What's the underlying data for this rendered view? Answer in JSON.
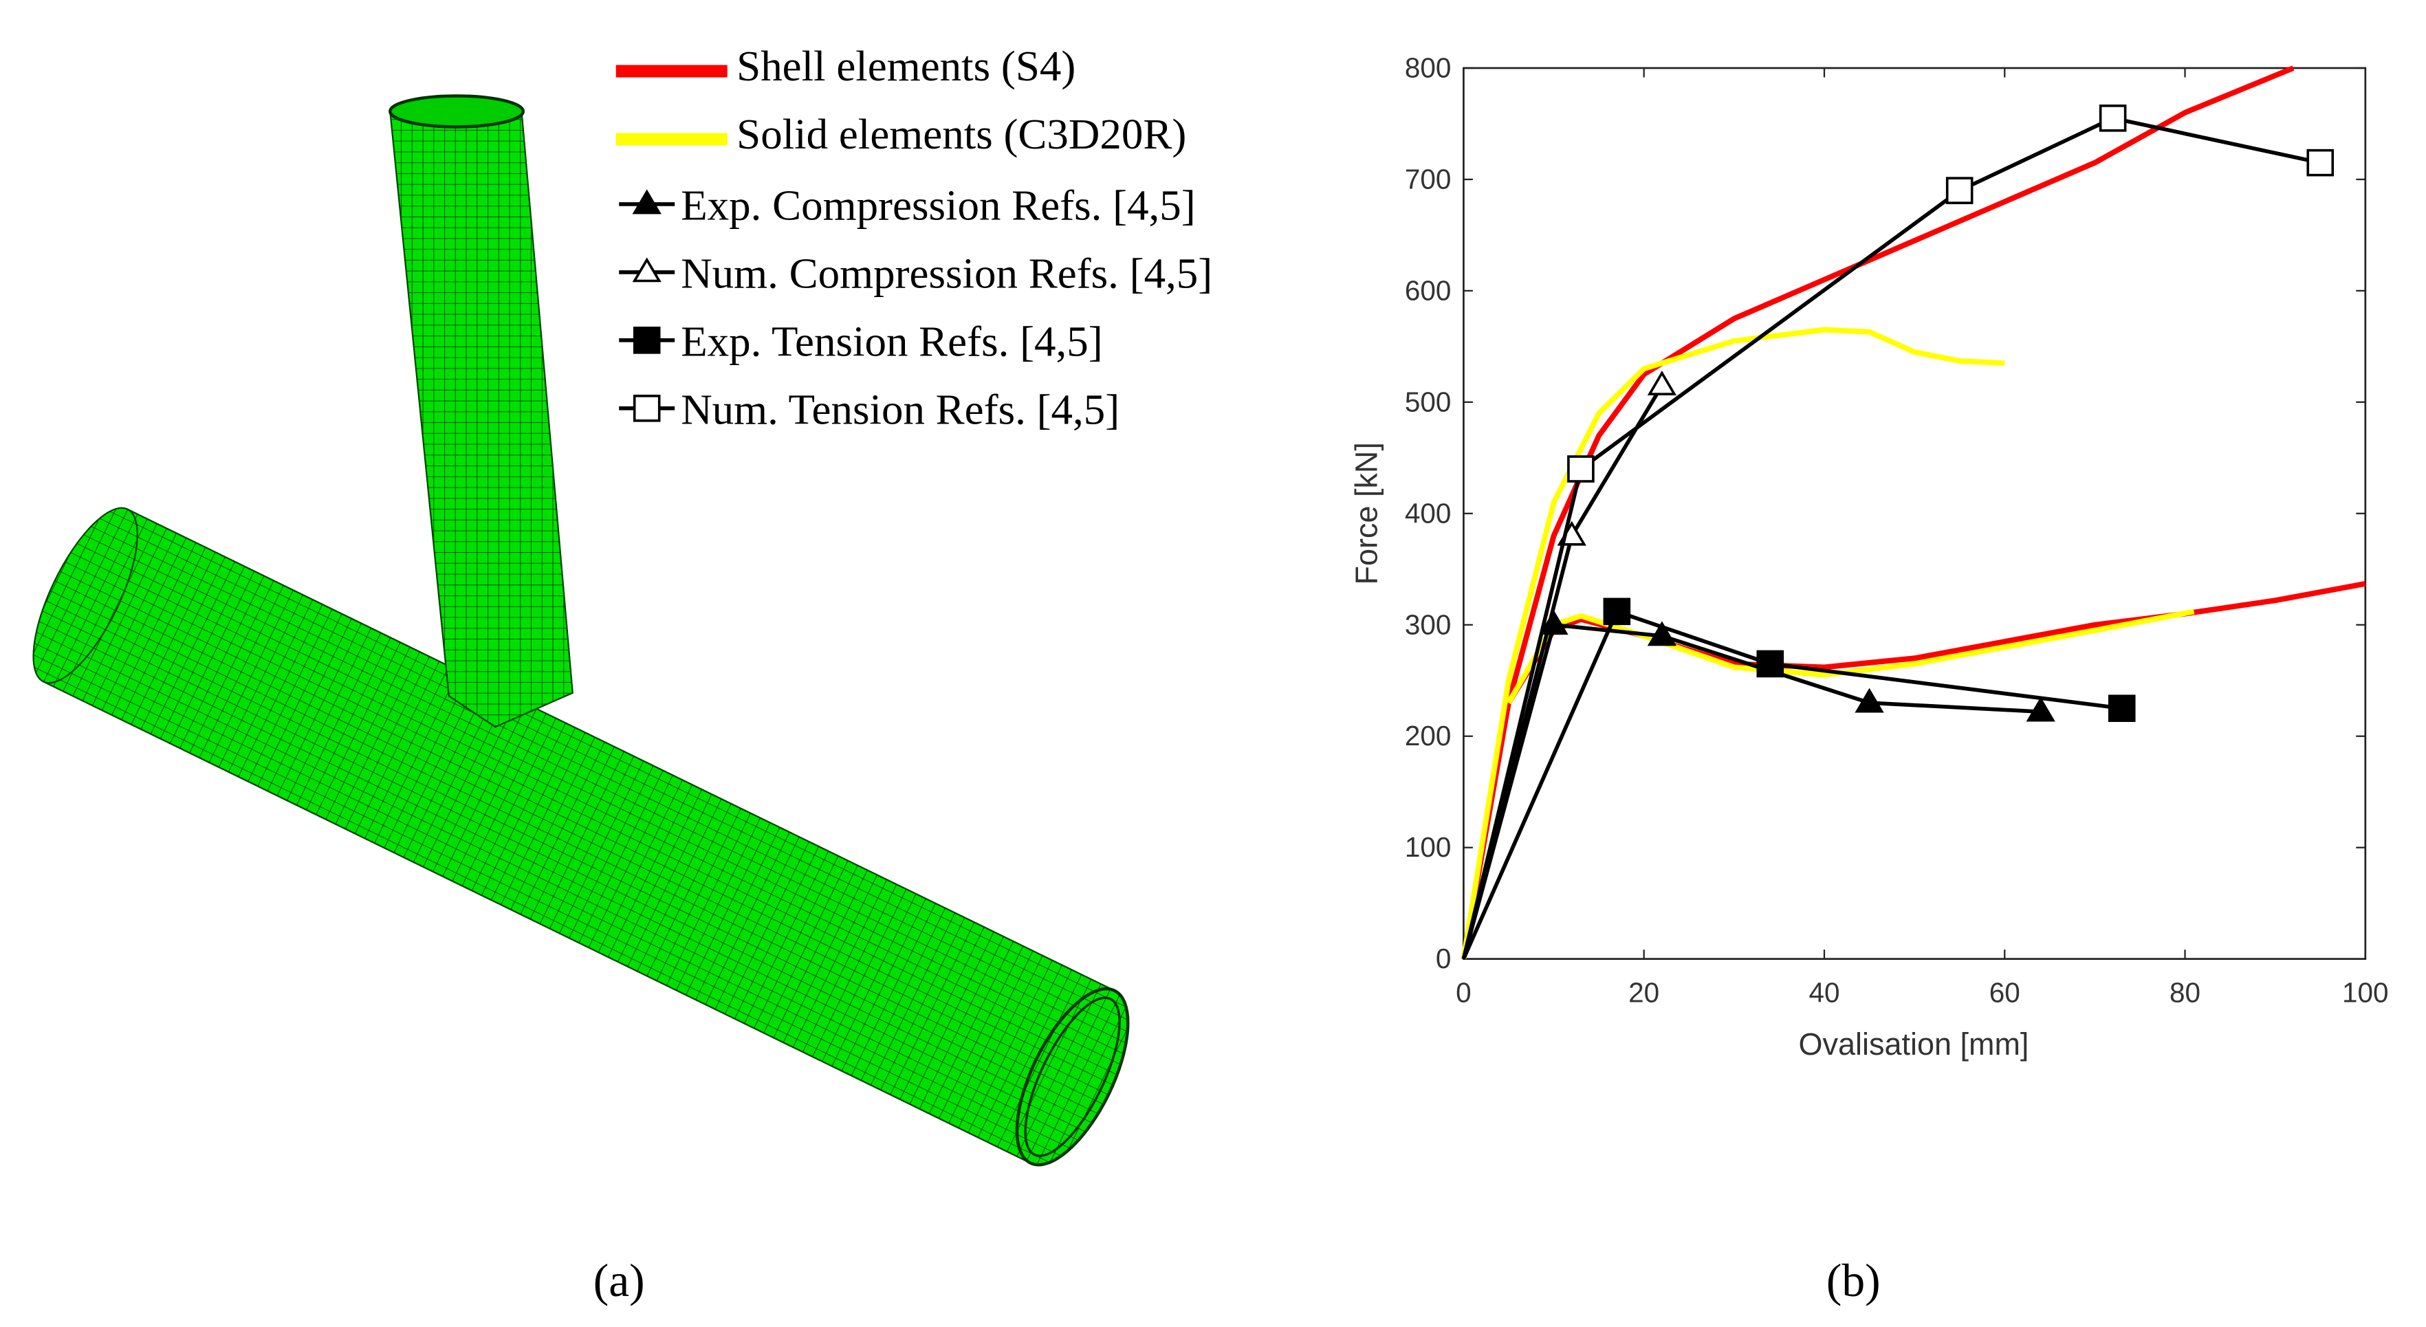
{
  "panels": [
    "(a)",
    "(b)"
  ],
  "chart_data": {
    "type": "line",
    "xlabel": "Ovalisation [mm]",
    "ylabel": "Force [kN]",
    "xlim": [
      0,
      100
    ],
    "ylim": [
      0,
      800
    ],
    "xticks": [
      0,
      20,
      40,
      60,
      80,
      100
    ],
    "yticks": [
      0,
      100,
      200,
      300,
      400,
      500,
      600,
      700,
      800
    ],
    "series": [
      {
        "name": "Shell elements (S4)",
        "color": "#ff0000",
        "style": "thick",
        "x": [
          0,
          5,
          10,
          15,
          20,
          30,
          40,
          50,
          60,
          70,
          80,
          92,
          null,
          5,
          10,
          13,
          20,
          30,
          40,
          50,
          60,
          70,
          80,
          90,
          100
        ],
        "values": [
          0,
          230,
          380,
          470,
          525,
          575,
          610,
          645,
          680,
          715,
          760,
          800,
          null,
          230,
          295,
          305,
          290,
          265,
          262,
          270,
          285,
          300,
          310,
          322,
          337
        ]
      },
      {
        "name": "Solid elements (C3D20R)",
        "color": "#ffff00",
        "style": "thick",
        "x": [
          0,
          5,
          10,
          15,
          20,
          30,
          40,
          45,
          50,
          55,
          60,
          null,
          5,
          10,
          13,
          20,
          30,
          40,
          50,
          60,
          70,
          81
        ],
        "values": [
          0,
          250,
          410,
          490,
          530,
          555,
          565,
          563,
          545,
          537,
          535,
          null,
          230,
          300,
          308,
          290,
          262,
          255,
          265,
          280,
          295,
          312
        ]
      },
      {
        "name": "Exp. Compression Refs. [4,5]",
        "color": "#000000",
        "marker": "triangle-filled",
        "x": [
          0,
          10,
          22,
          45,
          64
        ],
        "values": [
          0,
          300,
          290,
          230,
          222
        ]
      },
      {
        "name": "Num. Compression Refs. [4,5]",
        "color": "#000000",
        "marker": "triangle-open",
        "x": [
          0,
          12,
          22
        ],
        "values": [
          0,
          380,
          515
        ]
      },
      {
        "name": "Exp. Tension Refs. [4,5]",
        "color": "#000000",
        "marker": "square-filled",
        "x": [
          0,
          17,
          34,
          73
        ],
        "values": [
          0,
          312,
          265,
          225
        ]
      },
      {
        "name": "Num. Tension Refs. [4,5]",
        "color": "#000000",
        "marker": "square-open",
        "x": [
          0,
          13,
          55,
          72,
          95
        ],
        "values": [
          0,
          440,
          690,
          755,
          715
        ]
      }
    ]
  }
}
